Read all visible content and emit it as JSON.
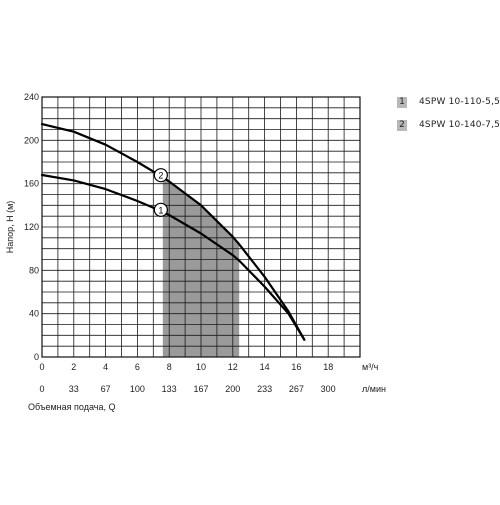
{
  "chart_data": {
    "type": "line",
    "ylabel": "Напор, H (м)",
    "xlabel": "Объемная подача, Q",
    "x_unit_primary": "м³/ч",
    "x_unit_secondary": "л/мин",
    "x_ticks_primary": [
      0,
      2,
      4,
      6,
      8,
      10,
      12,
      14,
      16,
      18
    ],
    "x_ticks_secondary": [
      0,
      33,
      67,
      100,
      133,
      167,
      200,
      233,
      267,
      300
    ],
    "y_ticks": [
      0,
      40,
      80,
      120,
      160,
      200,
      240
    ],
    "xlim": [
      0,
      20
    ],
    "ylim": [
      0,
      240
    ],
    "grid": true,
    "legend_placement": "top-right",
    "working_range": [
      7.6,
      12.4
    ],
    "series": [
      {
        "id": "1",
        "name": "4SPW 10-110-5,5",
        "x": [
          0,
          2,
          4,
          6,
          7.6,
          8,
          10,
          12,
          12.4,
          14,
          15.5,
          16.5
        ],
        "y": [
          168,
          163,
          155,
          144,
          134,
          131,
          114,
          94,
          89,
          65,
          40,
          16
        ]
      },
      {
        "id": "2",
        "name": "4SPW 10-140-7,5",
        "x": [
          0,
          2,
          4,
          6,
          7.6,
          8,
          10,
          12,
          12.4,
          14,
          15.5,
          16.5
        ],
        "y": [
          215,
          208,
          196,
          180,
          166,
          162,
          140,
          111,
          104,
          74,
          42,
          16
        ]
      }
    ],
    "curve_markers": [
      "1",
      "2"
    ]
  }
}
